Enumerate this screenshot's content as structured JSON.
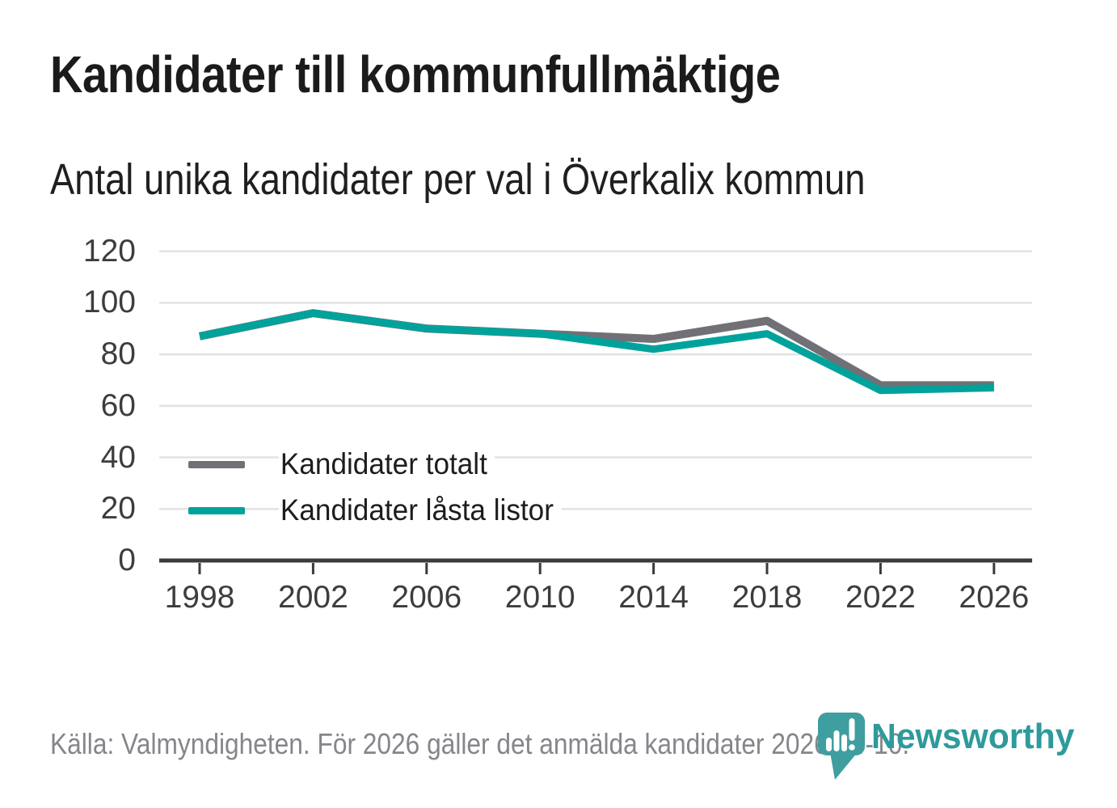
{
  "header": {
    "title": "Kandidater till kommunfullmäktige",
    "subtitle": "Antal unika kandidater per val i Överkalix kommun"
  },
  "chart_data": {
    "type": "line",
    "categories": [
      "1998",
      "2002",
      "2006",
      "2010",
      "2014",
      "2018",
      "2022",
      "2026"
    ],
    "series": [
      {
        "name": "Kandidater totalt",
        "color": "#707076",
        "values": [
          87,
          96,
          90,
          88,
          86,
          93,
          68,
          68
        ]
      },
      {
        "name": "Kandidater låsta listor",
        "color": "#00a39c",
        "values": [
          87,
          96,
          90,
          88,
          82,
          88,
          66,
          67
        ]
      }
    ],
    "title": "Kandidater till kommunfullmäktige",
    "subtitle": "Antal unika kandidater per val i Överkalix kommun",
    "xlabel": "",
    "ylabel": "",
    "ylim": [
      0,
      120
    ],
    "yticks": [
      0,
      20,
      40,
      60,
      80,
      100,
      120
    ],
    "grid": "horizontal",
    "legend_position": "inside-left-bottom"
  },
  "footer": {
    "source": "Källa: Valmyndigheten. För 2026 gäller det anmälda kandidater 2026-04-10.",
    "brand": "Newsworthy"
  },
  "colors": {
    "accent_teal": "#00a39c",
    "total_gray": "#707076",
    "brand_teal": "#2e9a9b",
    "gridline": "#e3e3e3",
    "axis": "#3b3b3b"
  }
}
